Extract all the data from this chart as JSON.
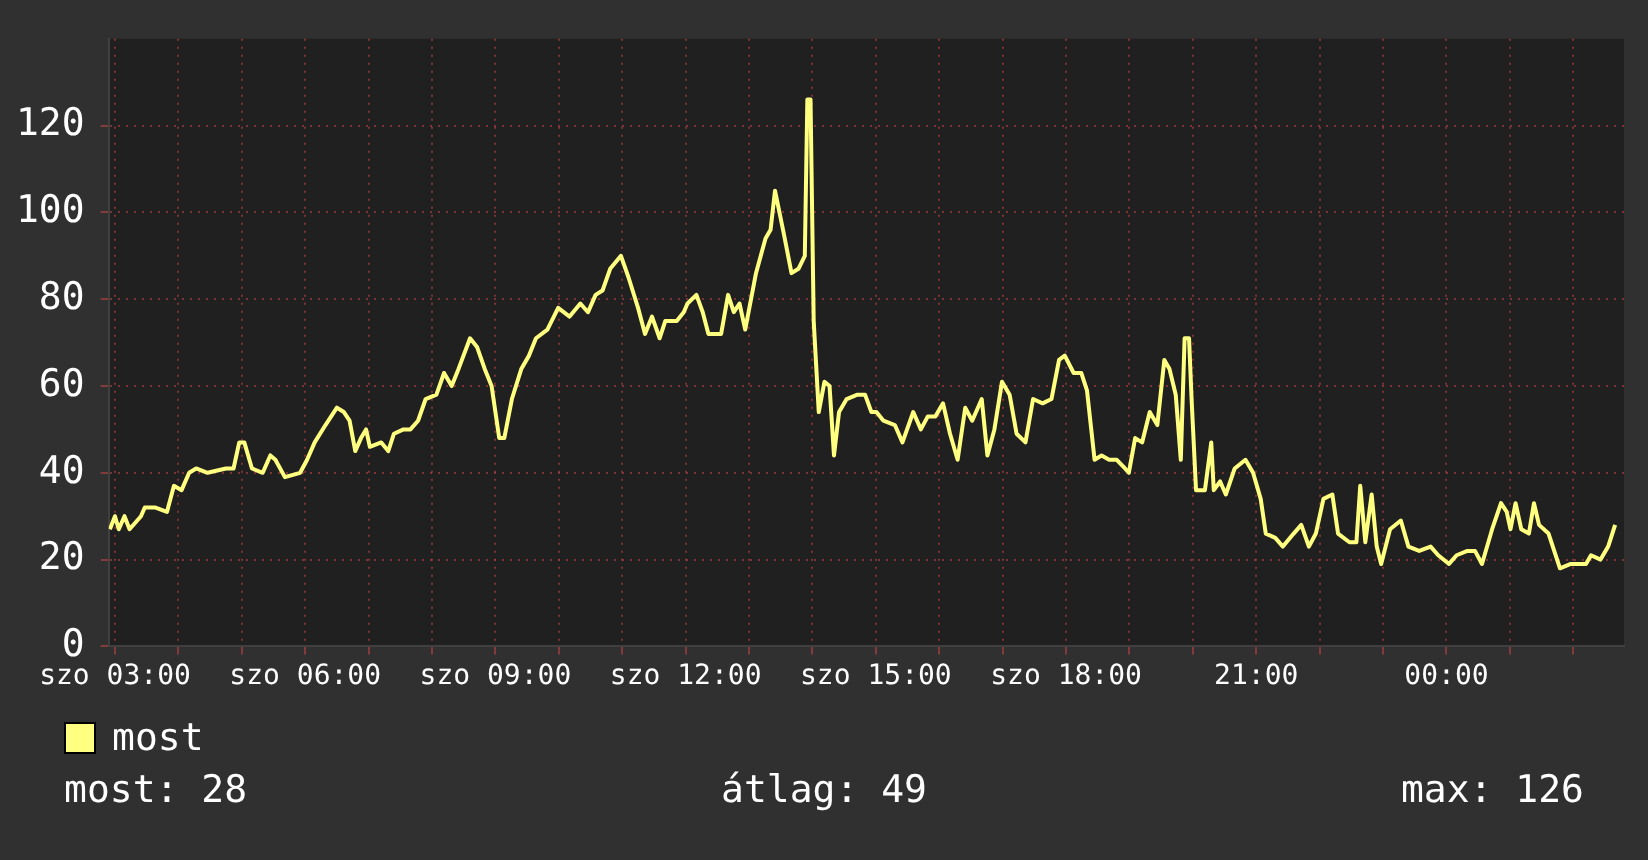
{
  "chart_data": {
    "type": "line",
    "legend": "bottom left",
    "grid": true,
    "marker": "none",
    "line_style": "solid",
    "xlim": [
      2.9,
      26.8
    ],
    "xticks": [
      {
        "value": 3,
        "label": "szo 03:00"
      },
      {
        "value": 4,
        "label": null
      },
      {
        "value": 5,
        "label": null
      },
      {
        "value": 6,
        "label": "szo 06:00"
      },
      {
        "value": 7,
        "label": null
      },
      {
        "value": 8,
        "label": null
      },
      {
        "value": 9,
        "label": "szo 09:00"
      },
      {
        "value": 10,
        "label": null
      },
      {
        "value": 11,
        "label": null
      },
      {
        "value": 12,
        "label": "szo 12:00"
      },
      {
        "value": 13,
        "label": null
      },
      {
        "value": 14,
        "label": null
      },
      {
        "value": 15,
        "label": "szo 15:00"
      },
      {
        "value": 16,
        "label": null
      },
      {
        "value": 17,
        "label": null
      },
      {
        "value": 18,
        "label": "szo 18:00"
      },
      {
        "value": 19,
        "label": null
      },
      {
        "value": 20,
        "label": null
      },
      {
        "value": 21,
        "label": "21:00"
      },
      {
        "value": 22,
        "label": null
      },
      {
        "value": 23,
        "label": null
      },
      {
        "value": 24,
        "label": "00:00"
      },
      {
        "value": 25,
        "label": null
      },
      {
        "value": 26,
        "label": null
      }
    ],
    "ylim": [
      0,
      140
    ],
    "yticks": [
      0,
      20,
      40,
      60,
      80,
      100,
      120
    ],
    "annotations": [
      "most: 28",
      "átlag: 49",
      "max: 126"
    ],
    "series": [
      {
        "name": "most",
        "color": "#ffff80",
        "x": [
          2.92,
          3.0,
          3.06,
          3.15,
          3.23,
          3.41,
          3.47,
          3.64,
          3.82,
          3.93,
          4.05,
          4.17,
          4.28,
          4.46,
          4.75,
          4.87,
          4.96,
          5.04,
          5.16,
          5.33,
          5.45,
          5.53,
          5.68,
          5.92,
          6.03,
          6.15,
          6.32,
          6.5,
          6.61,
          6.7,
          6.79,
          6.88,
          6.96,
          7.02,
          7.2,
          7.31,
          7.4,
          7.55,
          7.66,
          7.78,
          7.9,
          8.07,
          8.19,
          8.31,
          8.42,
          8.6,
          8.71,
          8.83,
          8.94,
          9.06,
          9.14,
          9.26,
          9.41,
          9.53,
          9.64,
          9.82,
          9.99,
          10.17,
          10.34,
          10.46,
          10.58,
          10.69,
          10.81,
          10.98,
          11.1,
          11.25,
          11.36,
          11.47,
          11.59,
          11.68,
          11.86,
          11.97,
          12.03,
          12.17,
          12.27,
          12.36,
          12.56,
          12.67,
          12.76,
          12.85,
          12.94,
          13.11,
          13.26,
          13.34,
          13.41,
          13.55,
          13.67,
          13.78,
          13.88,
          13.92,
          13.97,
          14.02,
          14.1,
          14.19,
          14.27,
          14.34,
          14.42,
          14.54,
          14.71,
          14.83,
          14.93,
          15.01,
          15.12,
          15.3,
          15.42,
          15.59,
          15.71,
          15.82,
          15.94,
          16.06,
          16.17,
          16.29,
          16.41,
          16.52,
          16.67,
          16.76,
          16.87,
          16.99,
          17.11,
          17.22,
          17.36,
          17.48,
          17.63,
          17.77,
          17.89,
          17.98,
          18.12,
          18.24,
          18.33,
          18.45,
          18.56,
          18.68,
          18.8,
          18.93,
          18.99,
          19.09,
          19.2,
          19.32,
          19.44,
          19.55,
          19.63,
          19.73,
          19.81,
          19.87,
          19.94,
          19.98,
          20.05,
          20.19,
          20.29,
          20.33,
          20.43,
          20.52,
          20.66,
          20.83,
          20.95,
          21.07,
          21.15,
          21.3,
          21.42,
          21.59,
          21.71,
          21.83,
          21.94,
          22.06,
          22.2,
          22.29,
          22.47,
          22.58,
          22.64,
          22.72,
          22.82,
          22.9,
          22.97,
          23.11,
          23.28,
          23.4,
          23.57,
          23.75,
          23.87,
          24.04,
          24.16,
          24.33,
          24.45,
          24.56,
          24.72,
          24.86,
          24.95,
          25.01,
          25.09,
          25.18,
          25.3,
          25.38,
          25.46,
          25.61,
          25.79,
          25.96,
          26.2,
          26.28,
          26.43,
          26.55,
          26.66
        ],
        "values": [
          27,
          30,
          27,
          30,
          27,
          30,
          32,
          32,
          31,
          37,
          36,
          40,
          41,
          40,
          41,
          41,
          47,
          47,
          41,
          40,
          44,
          43,
          39,
          40,
          43,
          47,
          51,
          55,
          54,
          52,
          45,
          48,
          50,
          46,
          47,
          45,
          49,
          50,
          50,
          52,
          57,
          58,
          63,
          60,
          64,
          71,
          69,
          64,
          60,
          48,
          48,
          57,
          64,
          67,
          71,
          73,
          78,
          76,
          79,
          77,
          81,
          82,
          87,
          90,
          85,
          78,
          72,
          76,
          71,
          75,
          75,
          77,
          79,
          81,
          77,
          72,
          72,
          81,
          77,
          79,
          73,
          86,
          94,
          96,
          105,
          95,
          86,
          87,
          90,
          126,
          126,
          75,
          54,
          61,
          60,
          44,
          54,
          57,
          58,
          58,
          54,
          54,
          52,
          51,
          47,
          54,
          50,
          53,
          53,
          56,
          49,
          43,
          55,
          52,
          57,
          44,
          50,
          61,
          58,
          49,
          47,
          57,
          56,
          57,
          66,
          67,
          63,
          63,
          59,
          43,
          44,
          43,
          43,
          41,
          40,
          48,
          47,
          54,
          51,
          66,
          64,
          58,
          43,
          71,
          71,
          57,
          36,
          36,
          47,
          36,
          38,
          35,
          41,
          43,
          40,
          34,
          26,
          25,
          23,
          26,
          28,
          23,
          26,
          34,
          35,
          26,
          24,
          24,
          37,
          24,
          35,
          23,
          19,
          27,
          29,
          23,
          22,
          23,
          21,
          19,
          21,
          22,
          22,
          19,
          27,
          33,
          31,
          27,
          33,
          27,
          26,
          33,
          28,
          26,
          18,
          19,
          19,
          21,
          20,
          23,
          28
        ]
      }
    ]
  }
}
